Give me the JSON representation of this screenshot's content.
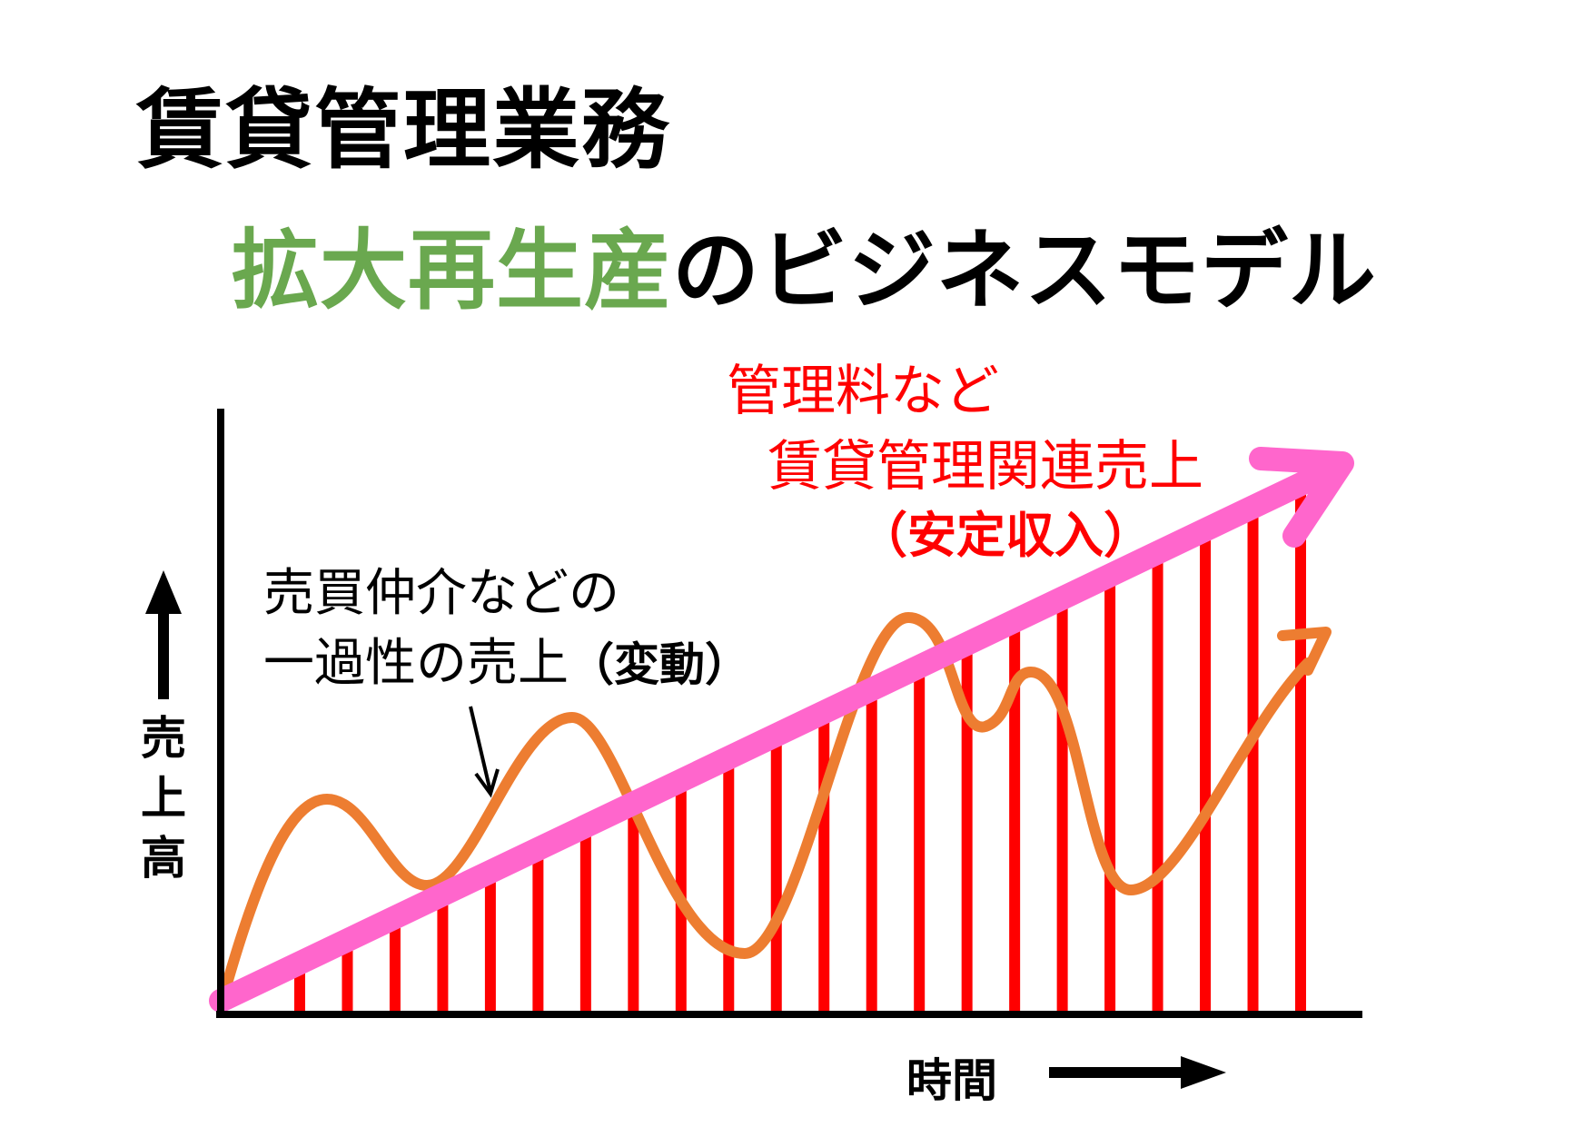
{
  "title": "賃貸管理業務",
  "subtitle": {
    "green_part": "拡大再生産",
    "black_part": "のビジネスモデル"
  },
  "annotation_stable": {
    "line1": "管理料など",
    "line2": "賃貸管理関連売上",
    "line3": "（安定収入）"
  },
  "annotation_variable": {
    "line1": "売買仲介などの",
    "line2_text": "一過性の売上",
    "line2_bold": "（変動）"
  },
  "y_axis_label": "売上高",
  "x_axis_label": "時間",
  "colors": {
    "green": "#6aa84f",
    "red_bars": "#ff0000",
    "orange_curve": "#ed7d31",
    "pink_arrow": "#ff66cc",
    "text_black": "#000000"
  },
  "chart_data": {
    "type": "diagram",
    "stable_bars_count": 22,
    "stable_trend": "linear increase",
    "variable_curve": "fluctuating wave trending upward"
  }
}
